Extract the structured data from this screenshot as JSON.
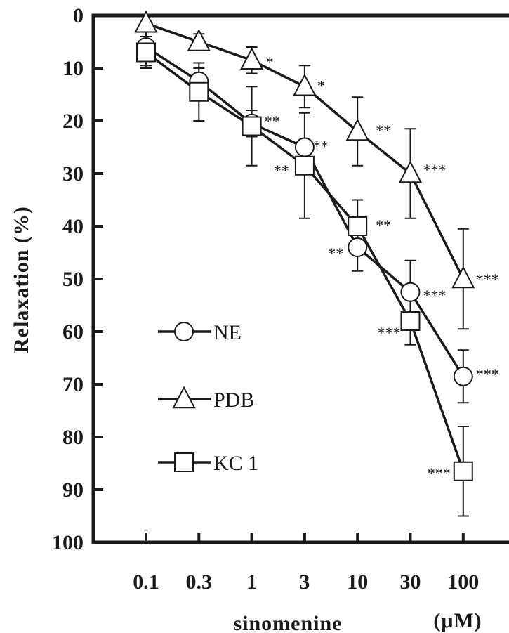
{
  "chart_data": {
    "type": "line",
    "xlabel": "sinomenine",
    "x_unit": "(μM)",
    "ylabel": "Relaxation (%)",
    "categories": [
      "0.1",
      "0.3",
      "1",
      "3",
      "10",
      "30",
      "100"
    ],
    "y_ticks": [
      "0",
      "10",
      "20",
      "30",
      "40",
      "50",
      "60",
      "70",
      "80",
      "90",
      "100"
    ],
    "ylim": [
      0,
      100
    ],
    "y_inverted": true,
    "grid": false,
    "legend_position": "bottom-left",
    "series": [
      {
        "name": "NE",
        "marker": "circle",
        "values": [
          6,
          12.5,
          20.5,
          25,
          44,
          52.5,
          68.5
        ],
        "errors": [
          3.5,
          2.5,
          2.5,
          0,
          4.5,
          6,
          5
        ],
        "significance": [
          "",
          "",
          "**",
          "**",
          "**",
          "***",
          "***"
        ]
      },
      {
        "name": "PDB",
        "marker": "triangle",
        "values": [
          1.5,
          5,
          8.5,
          13.5,
          22,
          30,
          50
        ],
        "errors": [
          0,
          1.5,
          2.5,
          4,
          6.5,
          8.5,
          9.5
        ],
        "significance": [
          "",
          "",
          "*",
          "*",
          "**",
          "***",
          "***"
        ]
      },
      {
        "name": "KC 1",
        "marker": "square",
        "values": [
          7,
          14.5,
          21,
          28.5,
          40,
          58,
          86.5
        ],
        "errors": [
          3,
          5.5,
          7.5,
          10,
          5,
          4.5,
          8.5
        ],
        "significance": [
          "",
          "",
          "",
          "**",
          "**",
          "***",
          "***"
        ]
      }
    ]
  }
}
